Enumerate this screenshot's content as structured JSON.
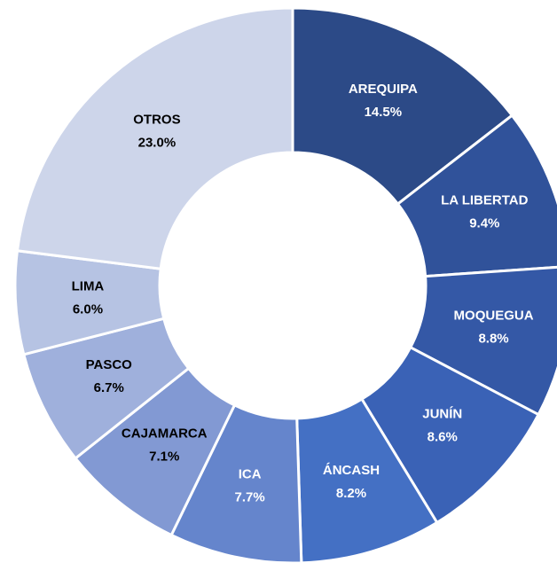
{
  "chart_data": {
    "type": "donut",
    "categories": [
      "AREQUIPA",
      "LA LIBERTAD",
      "MOQUEGUA",
      "JUNÍN",
      "ÁNCASH",
      "ICA",
      "CAJAMARCA",
      "PASCO",
      "LIMA",
      "OTROS"
    ],
    "values": [
      14.5,
      9.4,
      8.8,
      8.6,
      8.2,
      7.7,
      7.1,
      6.7,
      6.0,
      23.0
    ],
    "value_labels": [
      "14.5%",
      "9.4%",
      "8.8%",
      "8.6%",
      "8.2%",
      "7.7%",
      "7.1%",
      "6.7%",
      "6.0%",
      "23.0%"
    ],
    "colors": [
      "#2c4a87",
      "#30529a",
      "#3458a6",
      "#3a62b6",
      "#4470c4",
      "#6585cc",
      "#8299d3",
      "#9fb0dc",
      "#b6c3e3",
      "#cdd5ea"
    ]
  }
}
